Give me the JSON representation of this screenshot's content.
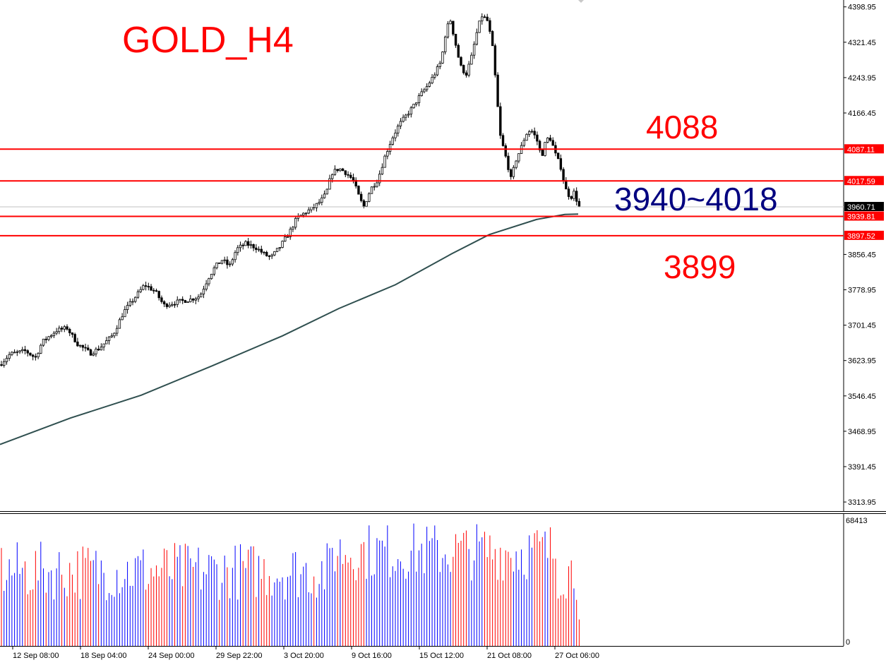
{
  "chart_data": {
    "type": "candlestick",
    "title": "GOLD_H4",
    "price_axis": {
      "ticks": [
        "4398.95",
        "4321.45",
        "4243.95",
        "4166.45",
        "3856.45",
        "3778.95",
        "3701.45",
        "3623.95",
        "3546.45",
        "3468.95",
        "3391.45",
        "3313.95"
      ],
      "range": [
        3294,
        4414
      ]
    },
    "time_axis": {
      "ticks": [
        "12 Sep 08:00",
        "18 Sep 04:00",
        "24 Sep 00:00",
        "29 Sep 22:00",
        "3 Oct 20:00",
        "9 Oct 16:00",
        "15 Oct 12:00",
        "21 Oct 08:00",
        "27 Oct 06:00"
      ]
    },
    "horizontal_lines": [
      {
        "value": 4087.11,
        "label": "4087.11",
        "color": "#ff0000"
      },
      {
        "value": 4017.59,
        "label": "4017.59",
        "color": "#ff0000"
      },
      {
        "value": 3939.81,
        "label": "3939.81",
        "color": "#ff0000"
      },
      {
        "value": 3897.52,
        "label": "3897.52",
        "color": "#ff0000"
      }
    ],
    "current_price": {
      "value": 3960.71,
      "label": "3960.71"
    },
    "annotations": [
      {
        "text": "4088",
        "color": "#ff0000"
      },
      {
        "text": "3940~4018",
        "color": "#000080"
      },
      {
        "text": "3899",
        "color": "#ff0000"
      }
    ],
    "price_path": [
      [
        0,
        3615
      ],
      [
        14,
        3638
      ],
      [
        36,
        3645
      ],
      [
        50,
        3630
      ],
      [
        60,
        3665
      ],
      [
        80,
        3690
      ],
      [
        95,
        3695
      ],
      [
        110,
        3660
      ],
      [
        128,
        3640
      ],
      [
        140,
        3650
      ],
      [
        160,
        3680
      ],
      [
        175,
        3730
      ],
      [
        190,
        3760
      ],
      [
        205,
        3790
      ],
      [
        220,
        3775
      ],
      [
        232,
        3745
      ],
      [
        250,
        3752
      ],
      [
        270,
        3758
      ],
      [
        283,
        3765
      ],
      [
        295,
        3805
      ],
      [
        305,
        3830
      ],
      [
        315,
        3845
      ],
      [
        325,
        3830
      ],
      [
        335,
        3868
      ],
      [
        348,
        3880
      ],
      [
        362,
        3872
      ],
      [
        376,
        3855
      ],
      [
        384,
        3850
      ],
      [
        396,
        3872
      ],
      [
        410,
        3905
      ],
      [
        420,
        3935
      ],
      [
        432,
        3948
      ],
      [
        445,
        3960
      ],
      [
        455,
        3975
      ],
      [
        462,
        3990
      ],
      [
        470,
        4035
      ],
      [
        480,
        4045
      ],
      [
        488,
        4038
      ],
      [
        500,
        4020
      ],
      [
        508,
        3985
      ],
      [
        515,
        3960
      ],
      [
        525,
        4000
      ],
      [
        535,
        4020
      ],
      [
        545,
        4070
      ],
      [
        555,
        4110
      ],
      [
        565,
        4140
      ],
      [
        575,
        4160
      ],
      [
        585,
        4180
      ],
      [
        595,
        4205
      ],
      [
        605,
        4225
      ],
      [
        615,
        4250
      ],
      [
        625,
        4280
      ],
      [
        632,
        4350
      ],
      [
        638,
        4370
      ],
      [
        645,
        4320
      ],
      [
        652,
        4270
      ],
      [
        660,
        4250
      ],
      [
        668,
        4290
      ],
      [
        675,
        4340
      ],
      [
        682,
        4380
      ],
      [
        690,
        4370
      ],
      [
        697,
        4320
      ],
      [
        703,
        4220
      ],
      [
        708,
        4120
      ],
      [
        713,
        4090
      ],
      [
        718,
        4060
      ],
      [
        724,
        4020
      ],
      [
        730,
        4060
      ],
      [
        738,
        4090
      ],
      [
        745,
        4120
      ],
      [
        752,
        4130
      ],
      [
        760,
        4110
      ],
      [
        767,
        4070
      ],
      [
        774,
        4110
      ],
      [
        780,
        4110
      ],
      [
        787,
        4075
      ],
      [
        794,
        4050
      ],
      [
        801,
        4000
      ],
      [
        808,
        3980
      ],
      [
        814,
        3995
      ],
      [
        819,
        3960
      ]
    ],
    "ma_path": [
      [
        0,
        3440
      ],
      [
        100,
        3498
      ],
      [
        200,
        3548
      ],
      [
        300,
        3612
      ],
      [
        400,
        3678
      ],
      [
        480,
        3738
      ],
      [
        560,
        3790
      ],
      [
        640,
        3858
      ],
      [
        693,
        3900
      ],
      [
        760,
        3933
      ],
      [
        800,
        3944
      ],
      [
        819,
        3945
      ]
    ],
    "volume": {
      "max_label": "68413",
      "zero_label": "0",
      "max": 68413
    }
  }
}
